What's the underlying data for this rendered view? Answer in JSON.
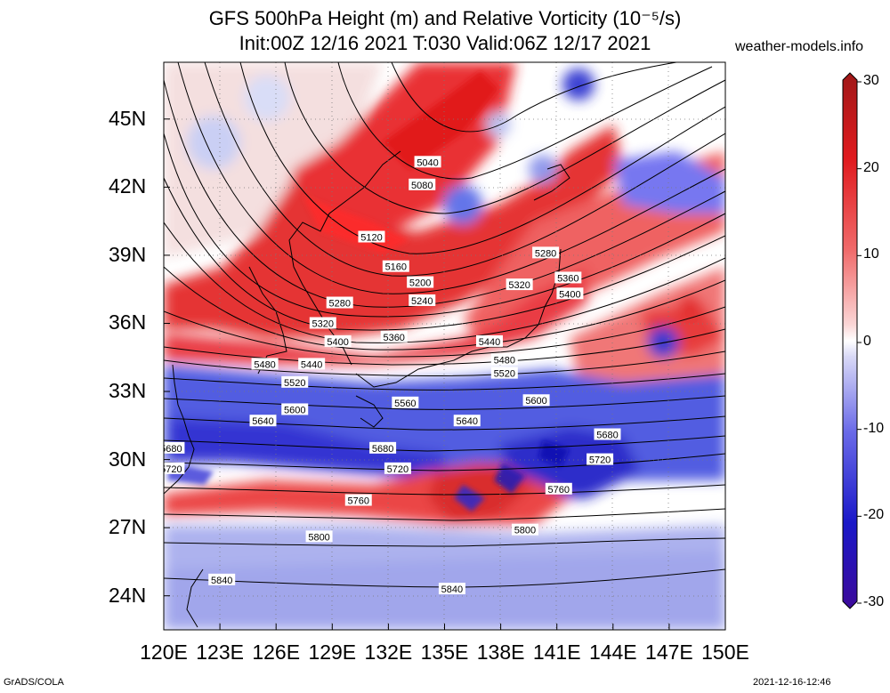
{
  "header": {
    "title_line1": "GFS 500hPa Height (m) and Relative Vorticity (10⁻⁵/s)",
    "title_line2": "Init:00Z 12/16 2021 T:030 Valid:06Z 12/17 2021",
    "site": "weather-models.info"
  },
  "footer": {
    "left": "GrADS/COLA",
    "right": "2021-12-16-12:46"
  },
  "map": {
    "lon_range": [
      120,
      150
    ],
    "lat_range": [
      22.5,
      47.5
    ],
    "lon_ticks": [
      "120E",
      "123E",
      "126E",
      "129E",
      "132E",
      "135E",
      "138E",
      "141E",
      "144E",
      "147E",
      "150E"
    ],
    "lat_ticks": [
      "24N",
      "27N",
      "30N",
      "33N",
      "36N",
      "39N",
      "42N",
      "45N"
    ],
    "contour_labels": [
      {
        "text": "5040",
        "lon": 134.1,
        "lat": 43.1
      },
      {
        "text": "5080",
        "lon": 133.8,
        "lat": 42.1
      },
      {
        "text": "5120",
        "lon": 131.1,
        "lat": 39.8
      },
      {
        "text": "5160",
        "lon": 132.4,
        "lat": 38.5
      },
      {
        "text": "5200",
        "lon": 133.7,
        "lat": 37.8
      },
      {
        "text": "5240",
        "lon": 133.8,
        "lat": 37.0
      },
      {
        "text": "5280",
        "lon": 129.4,
        "lat": 36.9
      },
      {
        "text": "5280",
        "lon": 140.4,
        "lat": 39.1
      },
      {
        "text": "5320",
        "lon": 128.5,
        "lat": 36.0
      },
      {
        "text": "5320",
        "lon": 139.0,
        "lat": 37.7
      },
      {
        "text": "5360",
        "lon": 132.3,
        "lat": 35.4
      },
      {
        "text": "5360",
        "lon": 141.6,
        "lat": 38.0
      },
      {
        "text": "5400",
        "lon": 129.3,
        "lat": 35.2
      },
      {
        "text": "5400",
        "lon": 141.7,
        "lat": 37.3
      },
      {
        "text": "5440",
        "lon": 127.9,
        "lat": 34.2
      },
      {
        "text": "5440",
        "lon": 137.4,
        "lat": 35.2
      },
      {
        "text": "5480",
        "lon": 125.4,
        "lat": 34.2
      },
      {
        "text": "5480",
        "lon": 138.2,
        "lat": 34.4
      },
      {
        "text": "5520",
        "lon": 127.0,
        "lat": 33.4
      },
      {
        "text": "5520",
        "lon": 138.2,
        "lat": 33.8
      },
      {
        "text": "5560",
        "lon": 132.9,
        "lat": 32.5
      },
      {
        "text": "5600",
        "lon": 127.0,
        "lat": 32.2
      },
      {
        "text": "5600",
        "lon": 139.9,
        "lat": 32.6
      },
      {
        "text": "5640",
        "lon": 125.3,
        "lat": 31.7
      },
      {
        "text": "5640",
        "lon": 136.2,
        "lat": 31.7
      },
      {
        "text": "5680",
        "lon": 120.4,
        "lat": 30.5
      },
      {
        "text": "5680",
        "lon": 131.7,
        "lat": 30.5
      },
      {
        "text": "5680",
        "lon": 143.7,
        "lat": 31.1
      },
      {
        "text": "5720",
        "lon": 120.4,
        "lat": 29.6
      },
      {
        "text": "5720",
        "lon": 132.5,
        "lat": 29.6
      },
      {
        "text": "5720",
        "lon": 143.3,
        "lat": 30.0
      },
      {
        "text": "5760",
        "lon": 130.4,
        "lat": 28.2
      },
      {
        "text": "5760",
        "lon": 141.1,
        "lat": 28.7
      },
      {
        "text": "5800",
        "lon": 128.3,
        "lat": 26.6
      },
      {
        "text": "5800",
        "lon": 139.3,
        "lat": 26.9
      },
      {
        "text": "5840",
        "lon": 123.1,
        "lat": 24.7
      },
      {
        "text": "5840",
        "lon": 135.4,
        "lat": 24.3
      }
    ]
  },
  "colorbar": {
    "labels": [
      "30",
      "20",
      "10",
      "0",
      "-10",
      "-20",
      "-30"
    ],
    "values": [
      30,
      20,
      10,
      0,
      -10,
      -20,
      -30
    ],
    "colors": [
      "#b21e1e",
      "#e0191e",
      "#f07070",
      "#ffffff",
      "#7f7ff0",
      "#2020d0",
      "#3a0aa0"
    ]
  }
}
